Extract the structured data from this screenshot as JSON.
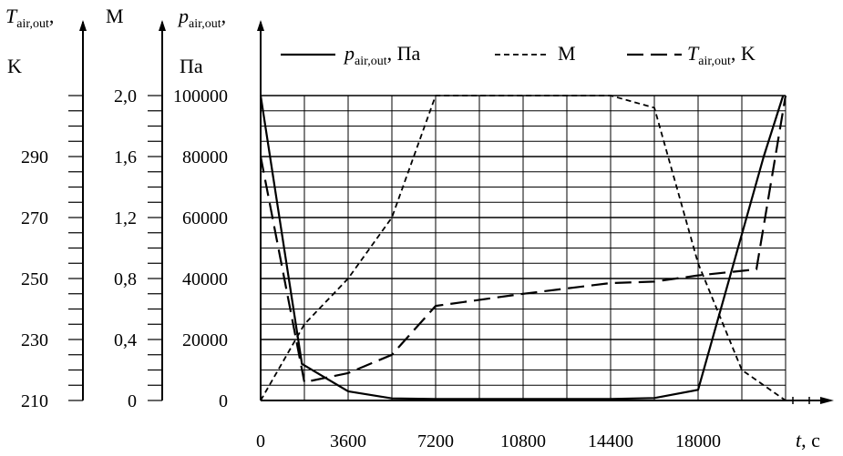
{
  "chart_data": {
    "type": "line",
    "x": [
      0,
      1800,
      3600,
      5400,
      7200,
      10800,
      14400,
      16200,
      18000,
      19800,
      21600
    ],
    "x_ticks": [
      "0",
      "3600",
      "7200",
      "10800",
      "14400",
      "18000"
    ],
    "x_tick_values": [
      0,
      3600,
      7200,
      10800,
      14400,
      18000
    ],
    "xlabel": {
      "var": "t",
      "unit": ", с"
    },
    "xlim": [
      0,
      21600
    ],
    "axes": [
      {
        "id": "T",
        "label_var": "T",
        "label_sub": "air,out",
        "label_tail": ",",
        "unit": "K",
        "ticks": [
          "210",
          "230",
          "250",
          "270",
          "290"
        ],
        "tick_values": [
          210,
          230,
          250,
          270,
          290
        ],
        "ylim": [
          210,
          310
        ]
      },
      {
        "id": "M",
        "label_var": "M",
        "label_sub": "",
        "label_tail": "",
        "unit": "",
        "ticks": [
          "0",
          "0,4",
          "0,8",
          "1,2",
          "1,6",
          "2,0"
        ],
        "tick_values": [
          0,
          0.4,
          0.8,
          1.2,
          1.6,
          2.0
        ],
        "ylim": [
          0,
          2.0
        ]
      },
      {
        "id": "p",
        "label_var": "p",
        "label_sub": "air,out",
        "label_tail": ",",
        "unit": "Па",
        "ticks": [
          "0",
          "20000",
          "40000",
          "60000",
          "80000",
          "100000"
        ],
        "tick_values": [
          0,
          20000,
          40000,
          60000,
          80000,
          100000
        ],
        "ylim": [
          0,
          100000
        ]
      }
    ],
    "series": [
      {
        "name_var": "p",
        "name_sub": "air,out",
        "name_tail": ", Па",
        "axis": "p",
        "style": "solid",
        "x": [
          0,
          1700,
          3600,
          5400,
          7200,
          10800,
          14400,
          16200,
          18000,
          20700,
          21500
        ],
        "values": [
          100000,
          12000,
          3000,
          700,
          500,
          500,
          500,
          800,
          3500,
          80000,
          100000
        ]
      },
      {
        "name_var": "M",
        "name_sub": "",
        "name_tail": "",
        "axis": "M",
        "style": "dotted",
        "x": [
          0,
          1800,
          3600,
          5400,
          7200,
          14400,
          16200,
          18000,
          19800,
          21600
        ],
        "values": [
          0,
          0.5,
          0.8,
          1.2,
          2.0,
          2.0,
          1.92,
          0.9,
          0.2,
          0.0
        ]
      },
      {
        "name_var": "T",
        "name_sub": "air,out",
        "name_tail": ", K",
        "axis": "T",
        "style": "dashed",
        "x": [
          0,
          1800,
          3600,
          5400,
          7200,
          10800,
          14400,
          16200,
          18000,
          20400,
          21600
        ],
        "values": [
          290,
          216,
          219,
          225,
          241,
          245,
          248.5,
          249,
          251,
          253,
          310
        ]
      }
    ],
    "grid": true,
    "legend": "top"
  }
}
